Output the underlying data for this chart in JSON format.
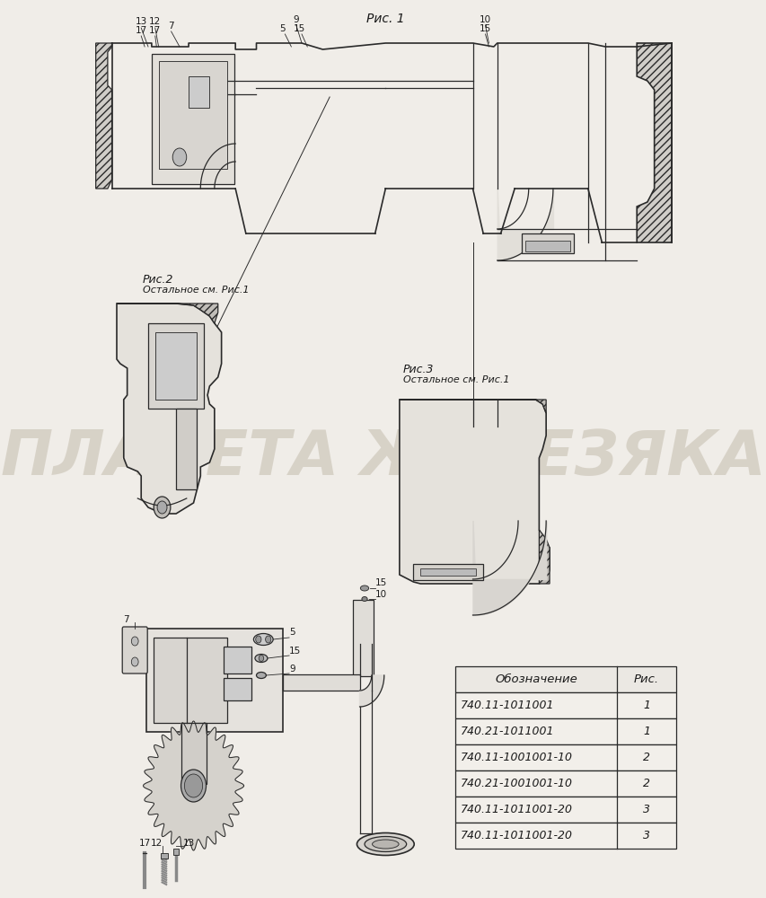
{
  "bg_color": "#f0ede8",
  "fig1_label": "Рис. 1",
  "fig2_label": "Рис.2",
  "fig2_sub": "Остальное см. Рис.1",
  "fig3_label": "Рис.3",
  "fig3_sub": "Остальное см. Рис.1",
  "watermark": "ПЛАНЕТА ЖЕЛЕЗЯКА",
  "table_header": [
    "Обозначение",
    "Рис."
  ],
  "table_data": [
    [
      "740.11-1011001",
      "1"
    ],
    [
      "740.21-1011001",
      "1"
    ],
    [
      "740.11-1001001-10",
      "2"
    ],
    [
      "740.21-1001001-10",
      "2"
    ],
    [
      "740.11-1011001-20",
      "3"
    ],
    [
      "740.11-1011001-20",
      "3"
    ]
  ]
}
